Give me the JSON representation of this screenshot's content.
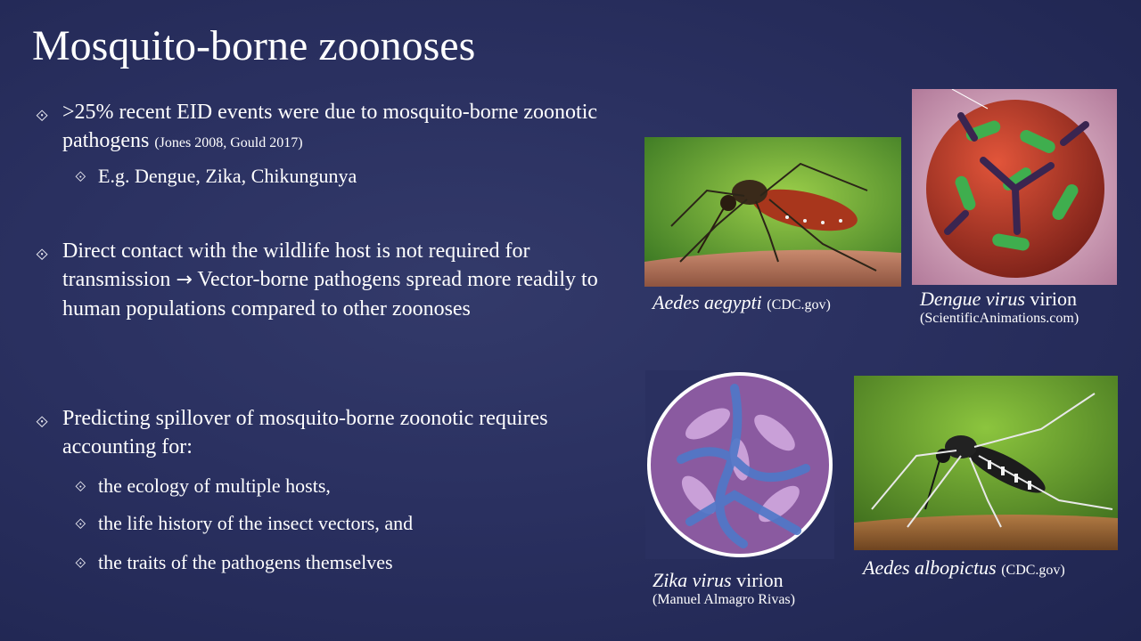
{
  "title": "Mosquito-borne zoonoses",
  "bullets": {
    "b1_text": ">25% recent EID events were due to mosquito-borne zoonotic pathogens",
    "b1_cite": "(Jones 2008, Gould 2017)",
    "b1_sub": "E.g. Dengue, Zika, Chikungunya",
    "b2_part1": "Direct contact with the wildlife host is not required for transmission",
    "b2_arrow": "→",
    "b2_part2": "Vector-borne pathogens spread more readily to human populations compared to other zoonoses",
    "b3_text": "Predicting spillover of mosquito-borne zoonotic requires accounting for:",
    "b3_subs": [
      "the ecology of multiple hosts,",
      "the life history of the insect vectors, and",
      "the traits of the pathogens themselves"
    ]
  },
  "captions": {
    "aegypti_name": "Aedes aegypti",
    "aegypti_src": "(CDC.gov)",
    "dengue_name": "Dengue virus",
    "dengue_word": "virion",
    "dengue_src": "(ScientificAnimations.com)",
    "zika_name": "Zika virus",
    "zika_word": "virion",
    "zika_src": "(Manuel Almagro Rivas)",
    "albopictus_name": "Aedes albopictus",
    "albopictus_src": "(CDC.gov)"
  },
  "icons": {
    "bullet": "diamond-bullet-icon"
  }
}
